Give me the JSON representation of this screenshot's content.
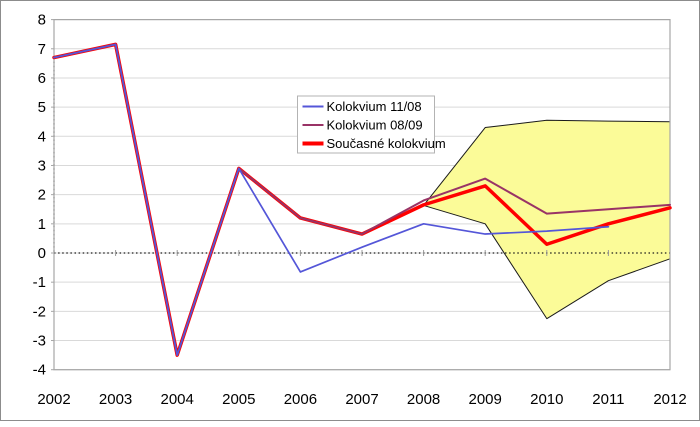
{
  "chart_data": {
    "type": "line",
    "title": "",
    "xlabel": "",
    "ylabel": "",
    "x": [
      2002,
      2003,
      2004,
      2005,
      2006,
      2007,
      2008,
      2009,
      2010,
      2011,
      2012
    ],
    "series": [
      {
        "name": "Kolokvium 11/08",
        "color": "#5456d8",
        "width": 1.7,
        "legend_sample_width": 2,
        "values": [
          6.7,
          7.15,
          -3.5,
          2.9,
          -0.65,
          0.2,
          1.0,
          0.65,
          0.75,
          0.9,
          null
        ]
      },
      {
        "name": "Kolokvium 08/09",
        "color": "#993366",
        "width": 2,
        "legend_sample_width": 2,
        "values": [
          6.7,
          7.15,
          -3.5,
          2.9,
          1.2,
          0.65,
          1.8,
          2.55,
          1.35,
          1.5,
          1.65
        ]
      },
      {
        "name": "Současné kolokvium",
        "color": "#ff0000",
        "width": 3.5,
        "legend_sample_width": 4,
        "values": [
          6.7,
          7.15,
          -3.5,
          2.9,
          1.2,
          0.65,
          1.65,
          2.3,
          0.3,
          1.0,
          1.55
        ]
      }
    ],
    "uncertainty_band": {
      "x": [
        2008,
        2009,
        2010,
        2011,
        2012
      ],
      "upper": [
        1.63,
        4.3,
        4.55,
        4.52,
        4.5
      ],
      "lower": [
        1.63,
        1.0,
        -2.25,
        -0.95,
        -0.2
      ],
      "fill": "#fbfb98",
      "border": "#1a1a1a"
    },
    "ylim": [
      -4,
      8
    ],
    "yticks": [
      8,
      7,
      6,
      5,
      4,
      3,
      2,
      1,
      0,
      -1,
      -2,
      -3,
      -4
    ],
    "xticks": [
      2002,
      2003,
      2004,
      2005,
      2006,
      2007,
      2008,
      2009,
      2010,
      2011,
      2012
    ],
    "grid": "horizontal",
    "zero_line_style": "dotted",
    "drop_line": {
      "x": 2002,
      "from_value": 6.7,
      "to_value": 0,
      "style": "dotted"
    },
    "legend": {
      "position": "upper-center",
      "entries": [
        "Kolokvium 11/08",
        "Kolokvium 08/09",
        "Současné kolokvium"
      ]
    },
    "colors": {
      "gridline": "#d9d9d9",
      "plot_border": "#a6a6a6",
      "background": "#ffffff",
      "dotted_axis": "#1a1a1a",
      "tick": "#999999",
      "legend_border": "#b3b3b3",
      "legend_background": "#ffffff"
    }
  }
}
